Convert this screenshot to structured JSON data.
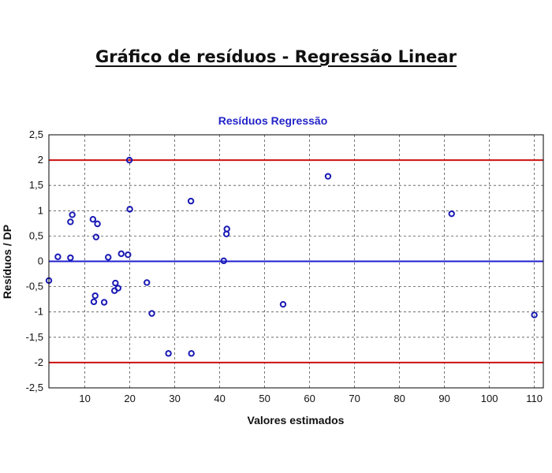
{
  "page": {
    "title": "Gráfico de resíduos - Regressão Linear"
  },
  "colors": {
    "title": "#2424c8",
    "points": "#1a1ab4",
    "zero_line": "#1f1fd0",
    "limit_lines": "#cc1010",
    "grid": "#555555",
    "frame": "#000000"
  },
  "chart_data": {
    "type": "scatter",
    "title": "Resíduos Regressão",
    "xlabel": "Valores estimados",
    "ylabel": "Resíduos / DP",
    "xlim": [
      2,
      112
    ],
    "ylim": [
      -2.5,
      2.5
    ],
    "xticks": [
      10,
      20,
      30,
      40,
      50,
      60,
      70,
      80,
      90,
      100,
      110
    ],
    "yticks": [
      -2.5,
      -2,
      -1.5,
      -1,
      -0.5,
      0,
      0.5,
      1,
      1.5,
      2,
      2.5
    ],
    "ytick_labels": [
      "-2,5",
      "-2",
      "-1,5",
      "-1",
      "-0,5",
      "0",
      "0,5",
      "1",
      "1,5",
      "2",
      "2,5"
    ],
    "grid": true,
    "reference_lines": [
      {
        "y": 2,
        "color": "#cc1010"
      },
      {
        "y": 0,
        "color": "#1f1fd0"
      },
      {
        "y": -2,
        "color": "#cc1010"
      }
    ],
    "points": [
      {
        "x": 2,
        "y": -0.38
      },
      {
        "x": 4,
        "y": 0.09
      },
      {
        "x": 6.8,
        "y": 0.07
      },
      {
        "x": 6.8,
        "y": 0.78
      },
      {
        "x": 7.2,
        "y": 0.92
      },
      {
        "x": 11.8,
        "y": 0.83
      },
      {
        "x": 12.5,
        "y": 0.48
      },
      {
        "x": 12.8,
        "y": 0.74
      },
      {
        "x": 12,
        "y": -0.8
      },
      {
        "x": 12.3,
        "y": -0.68
      },
      {
        "x": 14.3,
        "y": -0.81
      },
      {
        "x": 15.2,
        "y": 0.08
      },
      {
        "x": 16.6,
        "y": -0.58
      },
      {
        "x": 16.8,
        "y": -0.43
      },
      {
        "x": 17.4,
        "y": -0.53
      },
      {
        "x": 18.1,
        "y": 0.15
      },
      {
        "x": 19.6,
        "y": 0.13
      },
      {
        "x": 19.9,
        "y": 2.0
      },
      {
        "x": 20.0,
        "y": 1.03
      },
      {
        "x": 23.8,
        "y": -0.42
      },
      {
        "x": 24.9,
        "y": -1.03
      },
      {
        "x": 28.6,
        "y": -1.82
      },
      {
        "x": 33.6,
        "y": 1.19
      },
      {
        "x": 33.7,
        "y": -1.82
      },
      {
        "x": 40.9,
        "y": 0.01
      },
      {
        "x": 41.5,
        "y": 0.54
      },
      {
        "x": 41.6,
        "y": 0.64
      },
      {
        "x": 54.1,
        "y": -0.85
      },
      {
        "x": 64.1,
        "y": 1.68
      },
      {
        "x": 91.6,
        "y": 0.94
      },
      {
        "x": 110,
        "y": -1.06
      }
    ]
  }
}
